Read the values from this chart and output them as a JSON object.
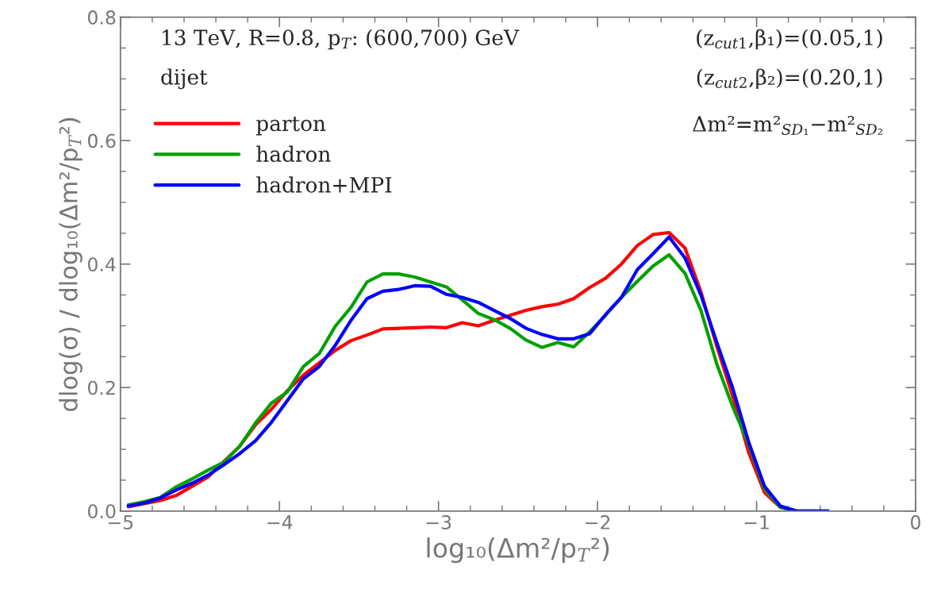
{
  "chart_data": {
    "type": "line",
    "xlabel": "log₁₀(Δm²/p$_{T}$²)",
    "ylabel": "dlog(σ) / dlog₁₀(Δm²/p$_{T}$²)",
    "annotations": [
      "13 TeV, R=0.8, p$_{T}$: (600,700) GeV",
      "dijet",
      "(z$_{cut1}$,β₁)=(0.05,1)",
      "(z$_{cut2}$,β₂)=(0.20,1)",
      "Δm²=m²$_{SD₁}$−m²$_{SD₂}$"
    ],
    "x": [
      -4.95,
      -4.85,
      -4.75,
      -4.65,
      -4.55,
      -4.45,
      -4.35,
      -4.25,
      -4.15,
      -4.05,
      -3.95,
      -3.85,
      -3.75,
      -3.65,
      -3.55,
      -3.45,
      -3.35,
      -3.25,
      -3.15,
      -3.05,
      -2.95,
      -2.85,
      -2.75,
      -2.65,
      -2.55,
      -2.45,
      -2.35,
      -2.25,
      -2.15,
      -2.05,
      -1.95,
      -1.85,
      -1.75,
      -1.65,
      -1.55,
      -1.45,
      -1.35,
      -1.25,
      -1.15,
      -1.05,
      -0.95,
      -0.85,
      -0.75,
      -0.65,
      -0.55
    ],
    "series": [
      {
        "name": "parton",
        "color": "#ff0000",
        "values": [
          0.007,
          0.012,
          0.017,
          0.025,
          0.04,
          0.055,
          0.08,
          0.105,
          0.14,
          0.165,
          0.195,
          0.22,
          0.24,
          0.26,
          0.276,
          0.285,
          0.295,
          0.296,
          0.297,
          0.298,
          0.297,
          0.305,
          0.3,
          0.309,
          0.317,
          0.325,
          0.331,
          0.335,
          0.344,
          0.362,
          0.377,
          0.4,
          0.43,
          0.448,
          0.451,
          0.426,
          0.355,
          0.267,
          0.186,
          0.095,
          0.03,
          0.006,
          0,
          null,
          null
        ]
      },
      {
        "name": "hadron",
        "color": "#00a000",
        "values": [
          0.01,
          0.015,
          0.022,
          0.039,
          0.052,
          0.066,
          0.079,
          0.105,
          0.143,
          0.175,
          0.193,
          0.234,
          0.255,
          0.299,
          0.33,
          0.371,
          0.384,
          0.384,
          0.379,
          0.371,
          0.363,
          0.342,
          0.32,
          0.31,
          0.296,
          0.277,
          0.265,
          0.273,
          0.266,
          0.29,
          0.317,
          0.346,
          0.372,
          0.397,
          0.415,
          0.385,
          0.325,
          0.238,
          0.169,
          0.108,
          0.036,
          0.006,
          0,
          0,
          0
        ]
      },
      {
        "name": "hadron+MPI",
        "color": "#0000ff",
        "values": [
          0.008,
          0.013,
          0.021,
          0.034,
          0.045,
          0.058,
          0.075,
          0.093,
          0.114,
          0.144,
          0.179,
          0.214,
          0.234,
          0.268,
          0.309,
          0.344,
          0.356,
          0.359,
          0.365,
          0.364,
          0.351,
          0.346,
          0.338,
          0.325,
          0.312,
          0.296,
          0.286,
          0.279,
          0.279,
          0.287,
          0.318,
          0.346,
          0.391,
          0.417,
          0.444,
          0.41,
          0.35,
          0.273,
          0.199,
          0.112,
          0.04,
          0.008,
          0,
          0,
          0
        ]
      }
    ],
    "xlim": [
      -5,
      0
    ],
    "xticks": [
      {
        "value": -5,
        "label": "−5"
      },
      {
        "value": -4,
        "label": "−4"
      },
      {
        "value": -3,
        "label": "−3"
      },
      {
        "value": -2,
        "label": "−2"
      },
      {
        "value": -1,
        "label": "−1"
      },
      0
    ],
    "ylim": [
      0,
      0.8
    ],
    "yticks": [
      {
        "value": 0,
        "label": "0.0"
      },
      {
        "value": 0.2,
        "label": "0.2"
      },
      {
        "value": 0.4,
        "label": "0.4"
      },
      {
        "value": 0.6,
        "label": "0.6"
      },
      {
        "value": 0.8,
        "label": "0.8"
      }
    ],
    "legend": "top left",
    "grid": false,
    "marker": "none",
    "line_style": "solid"
  }
}
